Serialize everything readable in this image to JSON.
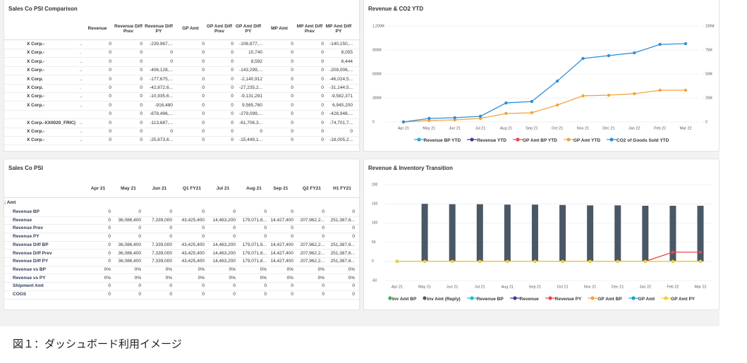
{
  "tables": [
    {
      "title": "Sales Co PSI Comparison",
      "columns": [
        "Revenue",
        "Revenue Diff Prev",
        "Revenue Diff PY",
        "GP Amt",
        "GP Amt Diff Prev",
        "GP Amt Diff PY",
        "MP Amt",
        "MP Amt Diff Prev",
        "MP Amt Diff PY"
      ],
      "rows": [
        {
          "label": "X Corp.-",
          "sub": "..",
          "cells": [
            "0",
            "0",
            "-239,967,...",
            "0",
            "0",
            "-106,877,...",
            "0",
            "0",
            "-140,150,..."
          ]
        },
        {
          "label": "X Corp.-",
          "sub": ".",
          "cells": [
            "0",
            "0",
            "0",
            "0",
            "0",
            "10,740",
            "0",
            "0",
            "8,055"
          ]
        },
        {
          "label": "X Corp.-",
          "sub": "..",
          "cells": [
            "0",
            "0",
            "0",
            "0",
            "0",
            "8,592",
            "0",
            "0",
            "6,444"
          ]
        },
        {
          "label": "X Corp.-",
          "sub": "..",
          "cells": [
            "0",
            "0",
            "-406,128,...",
            "0",
            "0",
            "-143,299,...",
            "0",
            "0",
            "-209,006,..."
          ]
        },
        {
          "label": "X Corp.",
          "sub": "..",
          "cells": [
            "0",
            "0",
            "-177,675,...",
            "0",
            "0",
            "-2,140,912",
            "0",
            "0",
            "-46,024,5..."
          ]
        },
        {
          "label": "X Corp.",
          "sub": ".",
          "cells": [
            "0",
            "0",
            "-42,872,6...",
            "0",
            "0",
            "-27,235,2...",
            "0",
            "0",
            "-31,144,5..."
          ]
        },
        {
          "label": "X Corp.-",
          "sub": "..",
          "cells": [
            "0",
            "0",
            "-10,935,6...",
            "0",
            "0",
            "-9,131,291",
            "0",
            "0",
            "-9,582,371"
          ]
        },
        {
          "label": "X Corp.-",
          "sub": "..",
          "cells": [
            "0",
            "0",
            "-916,480",
            "0",
            "0",
            "9,565,760",
            "0",
            "0",
            "6,945,200"
          ]
        },
        {
          "label": null,
          "sub": null,
          "cells": [
            "0",
            "0",
            "-878,496,...",
            "0",
            "0",
            "-279,099,...",
            "0",
            "0",
            "-428,948,..."
          ]
        },
        {
          "label": "X Corp.-XX0020_FRIC|",
          "sub": "..",
          "cells": [
            "0",
            "0",
            "-113,687,...",
            "0",
            "0",
            "-61,706,3...",
            "0",
            "0",
            "-74,701,7..."
          ]
        },
        {
          "label": "X Corp.-",
          "sub": "..",
          "cells": [
            "0",
            "0",
            "0",
            "0",
            "0",
            "0",
            "0",
            "0",
            "0"
          ]
        },
        {
          "label": "X Corp.-",
          "sub": "..",
          "cells": [
            "0",
            "0",
            "-25,673,6...",
            "0",
            "0",
            "-15,449,1...",
            "0",
            "0",
            "-18,005,2..."
          ]
        }
      ]
    },
    {
      "title": "Sales Co PSI",
      "columns": [
        "Apr 21",
        "May 21",
        "Jun 21",
        "Q1 FY21",
        "Jul 21",
        "Aug 21",
        "Sep 21",
        "Q2 FY21",
        "H1 FY21"
      ],
      "group": "; Amt",
      "rows": [
        {
          "label": "Revenue BP",
          "cells": [
            "0",
            "0",
            "0",
            "0",
            "0",
            "0",
            "0",
            "0",
            "0"
          ]
        },
        {
          "label": "Revenue",
          "cells": [
            "0",
            "36,086,400",
            "7,339,000",
            "43,425,400",
            "14,463,200",
            "179,071,6...",
            "14,427,400",
            "207,962,2...",
            "251,387,6..."
          ]
        },
        {
          "label": "Revenue Prev",
          "cells": [
            "0",
            "0",
            "0",
            "0",
            "0",
            "0",
            "0",
            "0",
            "0"
          ]
        },
        {
          "label": "Revenue PY",
          "cells": [
            "0",
            "0",
            "0",
            "0",
            "0",
            "0",
            "0",
            "0",
            "0"
          ]
        },
        {
          "label": "Revenue Diff BP",
          "cells": [
            "0",
            "36,086,400",
            "7,339,000",
            "43,425,400",
            "14,463,200",
            "179,071,6...",
            "14,427,400",
            "207,962,2...",
            "251,387,6..."
          ]
        },
        {
          "label": "Revenue Diff Prev",
          "cells": [
            "0",
            "36,086,400",
            "7,339,000",
            "43,425,400",
            "14,463,200",
            "179,071,6...",
            "14,427,400",
            "207,962,2...",
            "251,387,6..."
          ]
        },
        {
          "label": "Revenue Diff PY",
          "cells": [
            "0",
            "36,086,400",
            "7,339,000",
            "43,425,400",
            "14,463,200",
            "179,071,6...",
            "14,427,400",
            "207,962,2...",
            "251,387,6..."
          ]
        },
        {
          "label": "Revenue vs BP",
          "cells": [
            "0%",
            "0%",
            "0%",
            "0%",
            "0%",
            "0%",
            "0%",
            "0%",
            "0%"
          ]
        },
        {
          "label": "Revenue vs PY",
          "cells": [
            "0%",
            "0%",
            "0%",
            "0%",
            "0%",
            "0%",
            "0%",
            "0%",
            "0%"
          ]
        },
        {
          "label": "Shipment Amt",
          "cells": [
            "0",
            "0",
            "0",
            "0",
            "0",
            "0",
            "0",
            "0",
            "0"
          ]
        },
        {
          "label": "COGS",
          "cells": [
            "0",
            "0",
            "0",
            "0",
            "0",
            "0",
            "0",
            "0",
            "0"
          ]
        }
      ]
    }
  ],
  "chart_data": [
    {
      "type": "line",
      "title": "Revenue & CO2 YTD",
      "categories": [
        "Apr 21",
        "May 21",
        "Jun 21",
        "Jul 21",
        "Aug 21",
        "Sep 21",
        "Oct 21",
        "Nov 21",
        "Dec 21",
        "Jan 22",
        "Feb 22",
        "Mar 22"
      ],
      "ylim": [
        0,
        1200
      ],
      "yticks": [
        {
          "value": 1200,
          "label": "1,200M"
        },
        {
          "value": 900,
          "label": "900M"
        },
        {
          "value": 600,
          "label": "600M"
        },
        {
          "value": 300,
          "label": "300M"
        },
        0
      ],
      "y2lim": [
        0,
        100
      ],
      "y2ticks": [
        {
          "value": 100,
          "label": "100M"
        },
        {
          "value": 75,
          "label": "75M"
        },
        {
          "value": 50,
          "label": "50M"
        },
        {
          "value": 25,
          "label": "25M"
        },
        0
      ],
      "grid": true,
      "series": [
        {
          "name": "Revenue BP YTD",
          "color": "#29a8e0",
          "type": "line",
          "values": [
            null,
            null,
            null,
            null,
            null,
            null,
            null,
            null,
            null,
            null,
            null,
            null
          ]
        },
        {
          "name": "Revenue YTD",
          "color": "#3b3f8f",
          "type": "line",
          "values": [
            null,
            null,
            null,
            null,
            null,
            null,
            null,
            null,
            null,
            null,
            null,
            null
          ]
        },
        {
          "name": "GP Amt BP YTD",
          "color": "#e8474c",
          "type": "line",
          "values": [
            null,
            null,
            null,
            null,
            null,
            null,
            null,
            null,
            null,
            null,
            null,
            null
          ]
        },
        {
          "name": "GP Amt YTD",
          "color": "#f5a33b",
          "type": "line",
          "values": [
            0,
            18,
            26,
            44,
            106,
            115,
            212,
            327,
            335,
            353,
            397,
            397
          ]
        },
        {
          "name": "CO2 of Goods Sold YTD",
          "color": "#2f8fd6",
          "type": "line",
          "axis": "y2",
          "values": [
            0,
            3.7,
            4.4,
            5.9,
            19.8,
            21.3,
            42.7,
            66.2,
            69.2,
            72.1,
            80.9,
            81.7
          ]
        }
      ]
    },
    {
      "type": "combo",
      "title": "Revenue & Inventory Transition",
      "categories": [
        "Apr 21",
        "May 21",
        "Jun 21",
        "Jul 21",
        "Aug 21",
        "Sep 21",
        "Oct 21",
        "Nov 21",
        "Dec 21",
        "Jan 22",
        "Feb 22",
        "Mar 22"
      ],
      "ylim": [
        -50,
        200
      ],
      "yticks": [
        200,
        150,
        100,
        50,
        0,
        -50
      ],
      "grid": true,
      "series": [
        {
          "name": "Inv Amt BP",
          "color": "#3cb043",
          "type": "scatter",
          "values": [
            0,
            0,
            0,
            0,
            0,
            0,
            0,
            0,
            0,
            0,
            0,
            0
          ]
        },
        {
          "name": "Inv Amt (Reply)",
          "color": "#4a5866",
          "type": "bar",
          "values": [
            null,
            150,
            149,
            149,
            148,
            148,
            147,
            146,
            146,
            145,
            145,
            145
          ]
        },
        {
          "name": "Revenue BP",
          "color": "#26b5d6",
          "type": "line",
          "values": [
            null,
            null,
            null,
            null,
            null,
            null,
            null,
            null,
            null,
            null,
            null,
            null
          ]
        },
        {
          "name": "Revenue",
          "color": "#3b3f8f",
          "type": "line",
          "values": [
            null,
            null,
            null,
            null,
            null,
            null,
            null,
            null,
            null,
            null,
            null,
            null
          ]
        },
        {
          "name": "Revenue PY",
          "color": "#e8474c",
          "type": "line",
          "values": [
            0,
            0,
            0,
            0,
            0,
            0,
            0,
            0,
            0,
            0,
            24,
            24
          ]
        },
        {
          "name": "GP Amt BP",
          "color": "#f5a33b",
          "type": "line",
          "values": [
            null,
            null,
            null,
            null,
            null,
            null,
            null,
            null,
            null,
            null,
            null,
            null
          ]
        },
        {
          "name": "GP Amt",
          "color": "#1f9ed1",
          "type": "line",
          "values": [
            0,
            0,
            0,
            0,
            0,
            0,
            0,
            0,
            0,
            0,
            0,
            0
          ]
        },
        {
          "name": "GP Amt PY",
          "color": "#f2d12e",
          "type": "line",
          "values": [
            0,
            0,
            0,
            0,
            0,
            0,
            0,
            0,
            0,
            0,
            0,
            0
          ]
        }
      ]
    }
  ],
  "caption": "図１：ダッシュボード利用イメージ"
}
